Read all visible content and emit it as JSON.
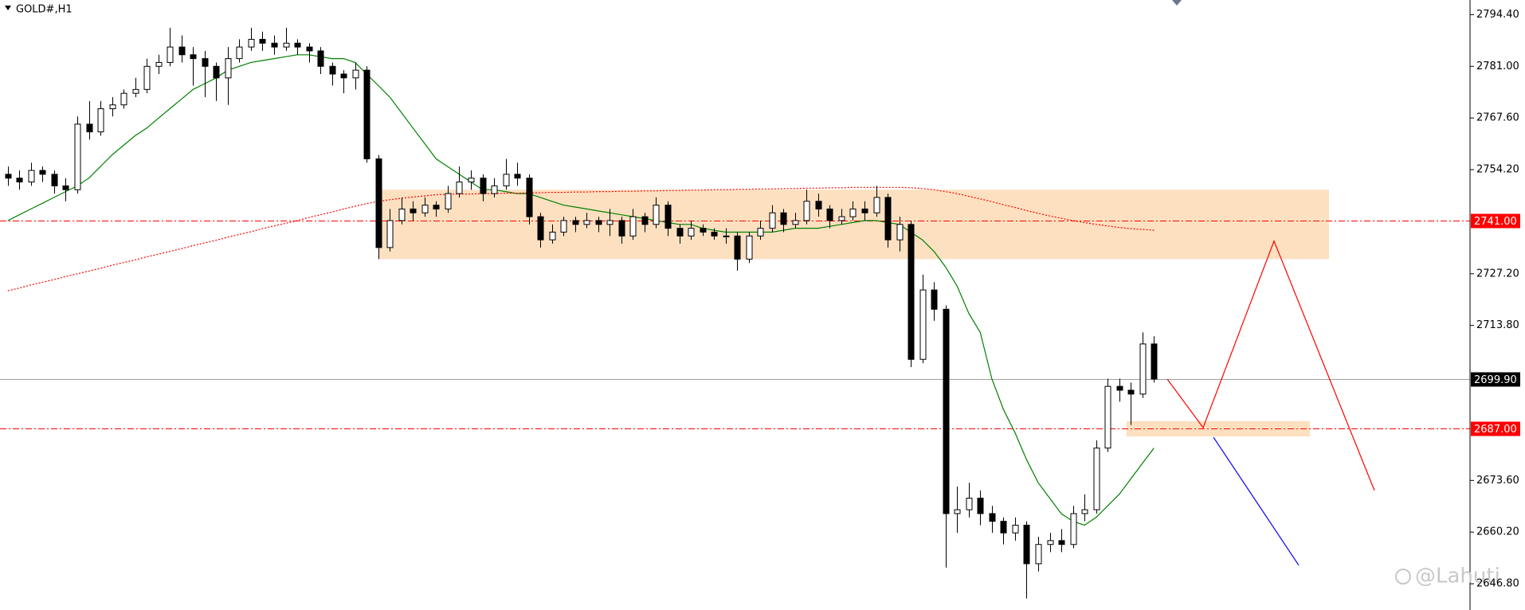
{
  "chart_data": {
    "type": "candlestick",
    "title": "GOLD#,H1",
    "open": [
      2753,
      2752,
      2751,
      2754,
      2753,
      2750,
      2749,
      2766,
      2764,
      2770,
      2771,
      2774,
      2775,
      2781,
      2782,
      2786,
      2784,
      2783,
      2781,
      2778,
      2783,
      2786,
      2788,
      2787,
      2786,
      2787,
      2786,
      2785,
      2781,
      2779,
      2778,
      2780,
      2757,
      2734,
      2741,
      2744,
      2743,
      2745,
      2744,
      2748,
      2751,
      2752,
      2748,
      2750,
      2753,
      2752,
      2742,
      2736,
      2738,
      2741,
      2740,
      2741,
      2740,
      2741,
      2737,
      2742,
      2740,
      2745,
      2739,
      2737,
      2739,
      2738,
      2737,
      2737,
      2731,
      2737,
      2739,
      2743,
      2740,
      2741,
      2746,
      2744,
      2741,
      2742,
      2744,
      2743,
      2747,
      2736,
      2740,
      2705,
      2723,
      2718,
      2665,
      2666,
      2669,
      2665,
      2663,
      2660,
      2662,
      2652,
      2657,
      2658,
      2657,
      2665,
      2666,
      2682,
      2698,
      2697,
      2696,
      2709
    ],
    "high": [
      2755,
      2754,
      2756,
      2755,
      2754,
      2752,
      2768,
      2772,
      2772,
      2773,
      2775,
      2778,
      2783,
      2784,
      2791,
      2789,
      2786,
      2785,
      2782,
      2786,
      2788,
      2791,
      2790,
      2789,
      2791,
      2788,
      2787,
      2786,
      2782,
      2780,
      2782,
      2781,
      2758,
      2744,
      2747,
      2746,
      2747,
      2746,
      2750,
      2755,
      2754,
      2753,
      2752,
      2757,
      2756,
      2753,
      2743,
      2740,
      2742,
      2742,
      2743,
      2742,
      2744,
      2742,
      2744,
      2743,
      2747,
      2746,
      2740,
      2741,
      2740,
      2739,
      2739,
      2738,
      2738,
      2741,
      2745,
      2744,
      2743,
      2749,
      2748,
      2745,
      2744,
      2746,
      2746,
      2750,
      2748,
      2742,
      2741,
      2727,
      2725,
      2719,
      2672,
      2673,
      2671,
      2667,
      2664,
      2664,
      2663,
      2659,
      2660,
      2661,
      2667,
      2670,
      2684,
      2700,
      2700,
      2699,
      2712,
      2711
    ],
    "low": [
      2750,
      2749,
      2750,
      2751,
      2748,
      2746,
      2748,
      2762,
      2763,
      2768,
      2770,
      2773,
      2774,
      2779,
      2781,
      2782,
      2776,
      2773,
      2772,
      2771,
      2782,
      2785,
      2785,
      2784,
      2785,
      2784,
      2782,
      2779,
      2776,
      2774,
      2775,
      2756,
      2731,
      2733,
      2740,
      2741,
      2742,
      2742,
      2743,
      2747,
      2749,
      2746,
      2747,
      2749,
      2750,
      2740,
      2734,
      2735,
      2737,
      2738,
      2739,
      2738,
      2737,
      2735,
      2736,
      2738,
      2739,
      2737,
      2735,
      2736,
      2737,
      2736,
      2735,
      2728,
      2730,
      2736,
      2738,
      2738,
      2739,
      2740,
      2742,
      2739,
      2740,
      2741,
      2741,
      2742,
      2734,
      2733,
      2703,
      2704,
      2715,
      2651,
      2660,
      2664,
      2662,
      2660,
      2657,
      2658,
      2643,
      2650,
      2655,
      2655,
      2656,
      2663,
      2665,
      2681,
      2694,
      2688,
      2695,
      2699
    ],
    "close": [
      2752,
      2751,
      2754,
      2753,
      2750,
      2749,
      2766,
      2764,
      2770,
      2771,
      2774,
      2775,
      2781,
      2782,
      2786,
      2784,
      2783,
      2781,
      2778,
      2783,
      2786,
      2788,
      2787,
      2786,
      2787,
      2786,
      2785,
      2781,
      2779,
      2778,
      2780,
      2757,
      2734,
      2741,
      2744,
      2743,
      2745,
      2744,
      2748,
      2751,
      2752,
      2748,
      2750,
      2753,
      2752,
      2742,
      2736,
      2738,
      2741,
      2740,
      2741,
      2740,
      2741,
      2737,
      2742,
      2740,
      2745,
      2739,
      2737,
      2739,
      2738,
      2737,
      2737,
      2731,
      2737,
      2739,
      2743,
      2740,
      2741,
      2746,
      2744,
      2741,
      2742,
      2744,
      2743,
      2747,
      2736,
      2740,
      2705,
      2723,
      2718,
      2665,
      2666,
      2669,
      2665,
      2663,
      2660,
      2662,
      2652,
      2657,
      2658,
      2657,
      2665,
      2666,
      2682,
      2698,
      2697,
      2696,
      2709,
      2699.9
    ],
    "bull_color": "#ffffff",
    "bear_color": "#000000",
    "series": [
      {
        "color": "#008000",
        "style": "solid",
        "values": [
          2741,
          2742.5,
          2744,
          2745.5,
          2747,
          2748.5,
          2750,
          2752,
          2755,
          2758,
          2760.5,
          2763,
          2765,
          2767.5,
          2770,
          2772.5,
          2775,
          2776.5,
          2778,
          2780,
          2781,
          2782,
          2782.5,
          2783,
          2783.5,
          2784,
          2784,
          2783.5,
          2783,
          2783,
          2782,
          2779,
          2776,
          2773,
          2769,
          2765,
          2761,
          2757,
          2755,
          2753,
          2751,
          2749,
          2749,
          2748.5,
          2748,
          2748,
          2747,
          2746,
          2745,
          2744.5,
          2744,
          2743.5,
          2743,
          2742.5,
          2742,
          2741.5,
          2741,
          2740.5,
          2740,
          2740,
          2739,
          2738.5,
          2738,
          2738,
          2738,
          2738,
          2738,
          2738.5,
          2739,
          2739,
          2739,
          2739.5,
          2740,
          2740.5,
          2741,
          2741,
          2740.5,
          2740,
          2738,
          2736,
          2733,
          2729,
          2724,
          2717,
          2712,
          2700,
          2692,
          2686,
          2679,
          2673,
          2669,
          2665,
          2663,
          2662,
          2664,
          2667,
          2670,
          2674,
          2678,
          2682
        ]
      },
      {
        "color": "#ff0000",
        "style": "dotted",
        "values": [
          2722.8,
          2723.5,
          2724.3,
          2725.0,
          2725.7,
          2726.5,
          2727.2,
          2727.9,
          2728.6,
          2729.4,
          2730.1,
          2730.8,
          2731.6,
          2732.3,
          2733.0,
          2733.7,
          2734.5,
          2735.2,
          2735.9,
          2736.7,
          2737.4,
          2738.1,
          2738.9,
          2739.6,
          2740.3,
          2741.0,
          2741.8,
          2742.5,
          2743.2,
          2744.0,
          2744.7,
          2745.4,
          2746.0,
          2746.4,
          2746.8,
          2747.1,
          2747.4,
          2747.7,
          2747.8,
          2747.9,
          2747.9,
          2748.0,
          2748.0,
          2748.1,
          2748.1,
          2748.2,
          2748.2,
          2748.3,
          2748.3,
          2748.4,
          2748.4,
          2748.5,
          2748.5,
          2748.6,
          2748.6,
          2748.7,
          2748.7,
          2748.8,
          2748.8,
          2748.9,
          2748.9,
          2749.0,
          2749.0,
          2749.1,
          2749.1,
          2749.2,
          2749.2,
          2749.3,
          2749.3,
          2749.4,
          2749.4,
          2749.5,
          2749.5,
          2749.6,
          2749.6,
          2749.6,
          2749.6,
          2749.6,
          2749.5,
          2749.3,
          2749.0,
          2748.5,
          2748.0,
          2747.3,
          2746.6,
          2745.9,
          2745.1,
          2744.4,
          2743.6,
          2742.9,
          2742.2,
          2741.6,
          2741.0,
          2740.5,
          2740.0,
          2739.6,
          2739.2,
          2738.9,
          2738.7,
          2738.5
        ]
      }
    ],
    "levels": [
      {
        "value": 2741,
        "label": "2741.00",
        "color": "#ff0000",
        "style": "dashdot"
      },
      {
        "value": 2687,
        "label": "2687.00",
        "color": "#ff0000",
        "style": "dashdot"
      },
      {
        "value": 2699.9,
        "label": "2699.90",
        "color": "#000000",
        "style": "solid"
      }
    ],
    "zones": [
      {
        "low": 2731,
        "high": 2749,
        "color": "#fde0c0"
      },
      {
        "low": 2685,
        "high": 2689,
        "color": "#fde0c0"
      }
    ],
    "projections": [
      {
        "color": "#ff0000",
        "values": [
          2699.9,
          2687.3,
          2735.7,
          2671.0
        ]
      },
      {
        "color": "#0000ff",
        "values": [
          2684.8,
          2651.6
        ]
      }
    ],
    "ylim": [
      2640.0,
      2798.2
    ],
    "yticks": [
      {
        "value": 2794.4,
        "label": "2794.40"
      },
      {
        "value": 2781,
        "label": "2781.00"
      },
      {
        "value": 2767.6,
        "label": "2767.60"
      },
      {
        "value": 2754.2,
        "label": "2754.20"
      },
      {
        "value": 2727.2,
        "label": "2727.20"
      },
      {
        "value": 2713.8,
        "label": "2713.80"
      },
      {
        "value": 2673.6,
        "label": "2673.60"
      },
      {
        "value": 2660.2,
        "label": "2660.20"
      },
      {
        "value": 2646.8,
        "label": "2646.80"
      }
    ],
    "watermark": "@Lahuti"
  }
}
